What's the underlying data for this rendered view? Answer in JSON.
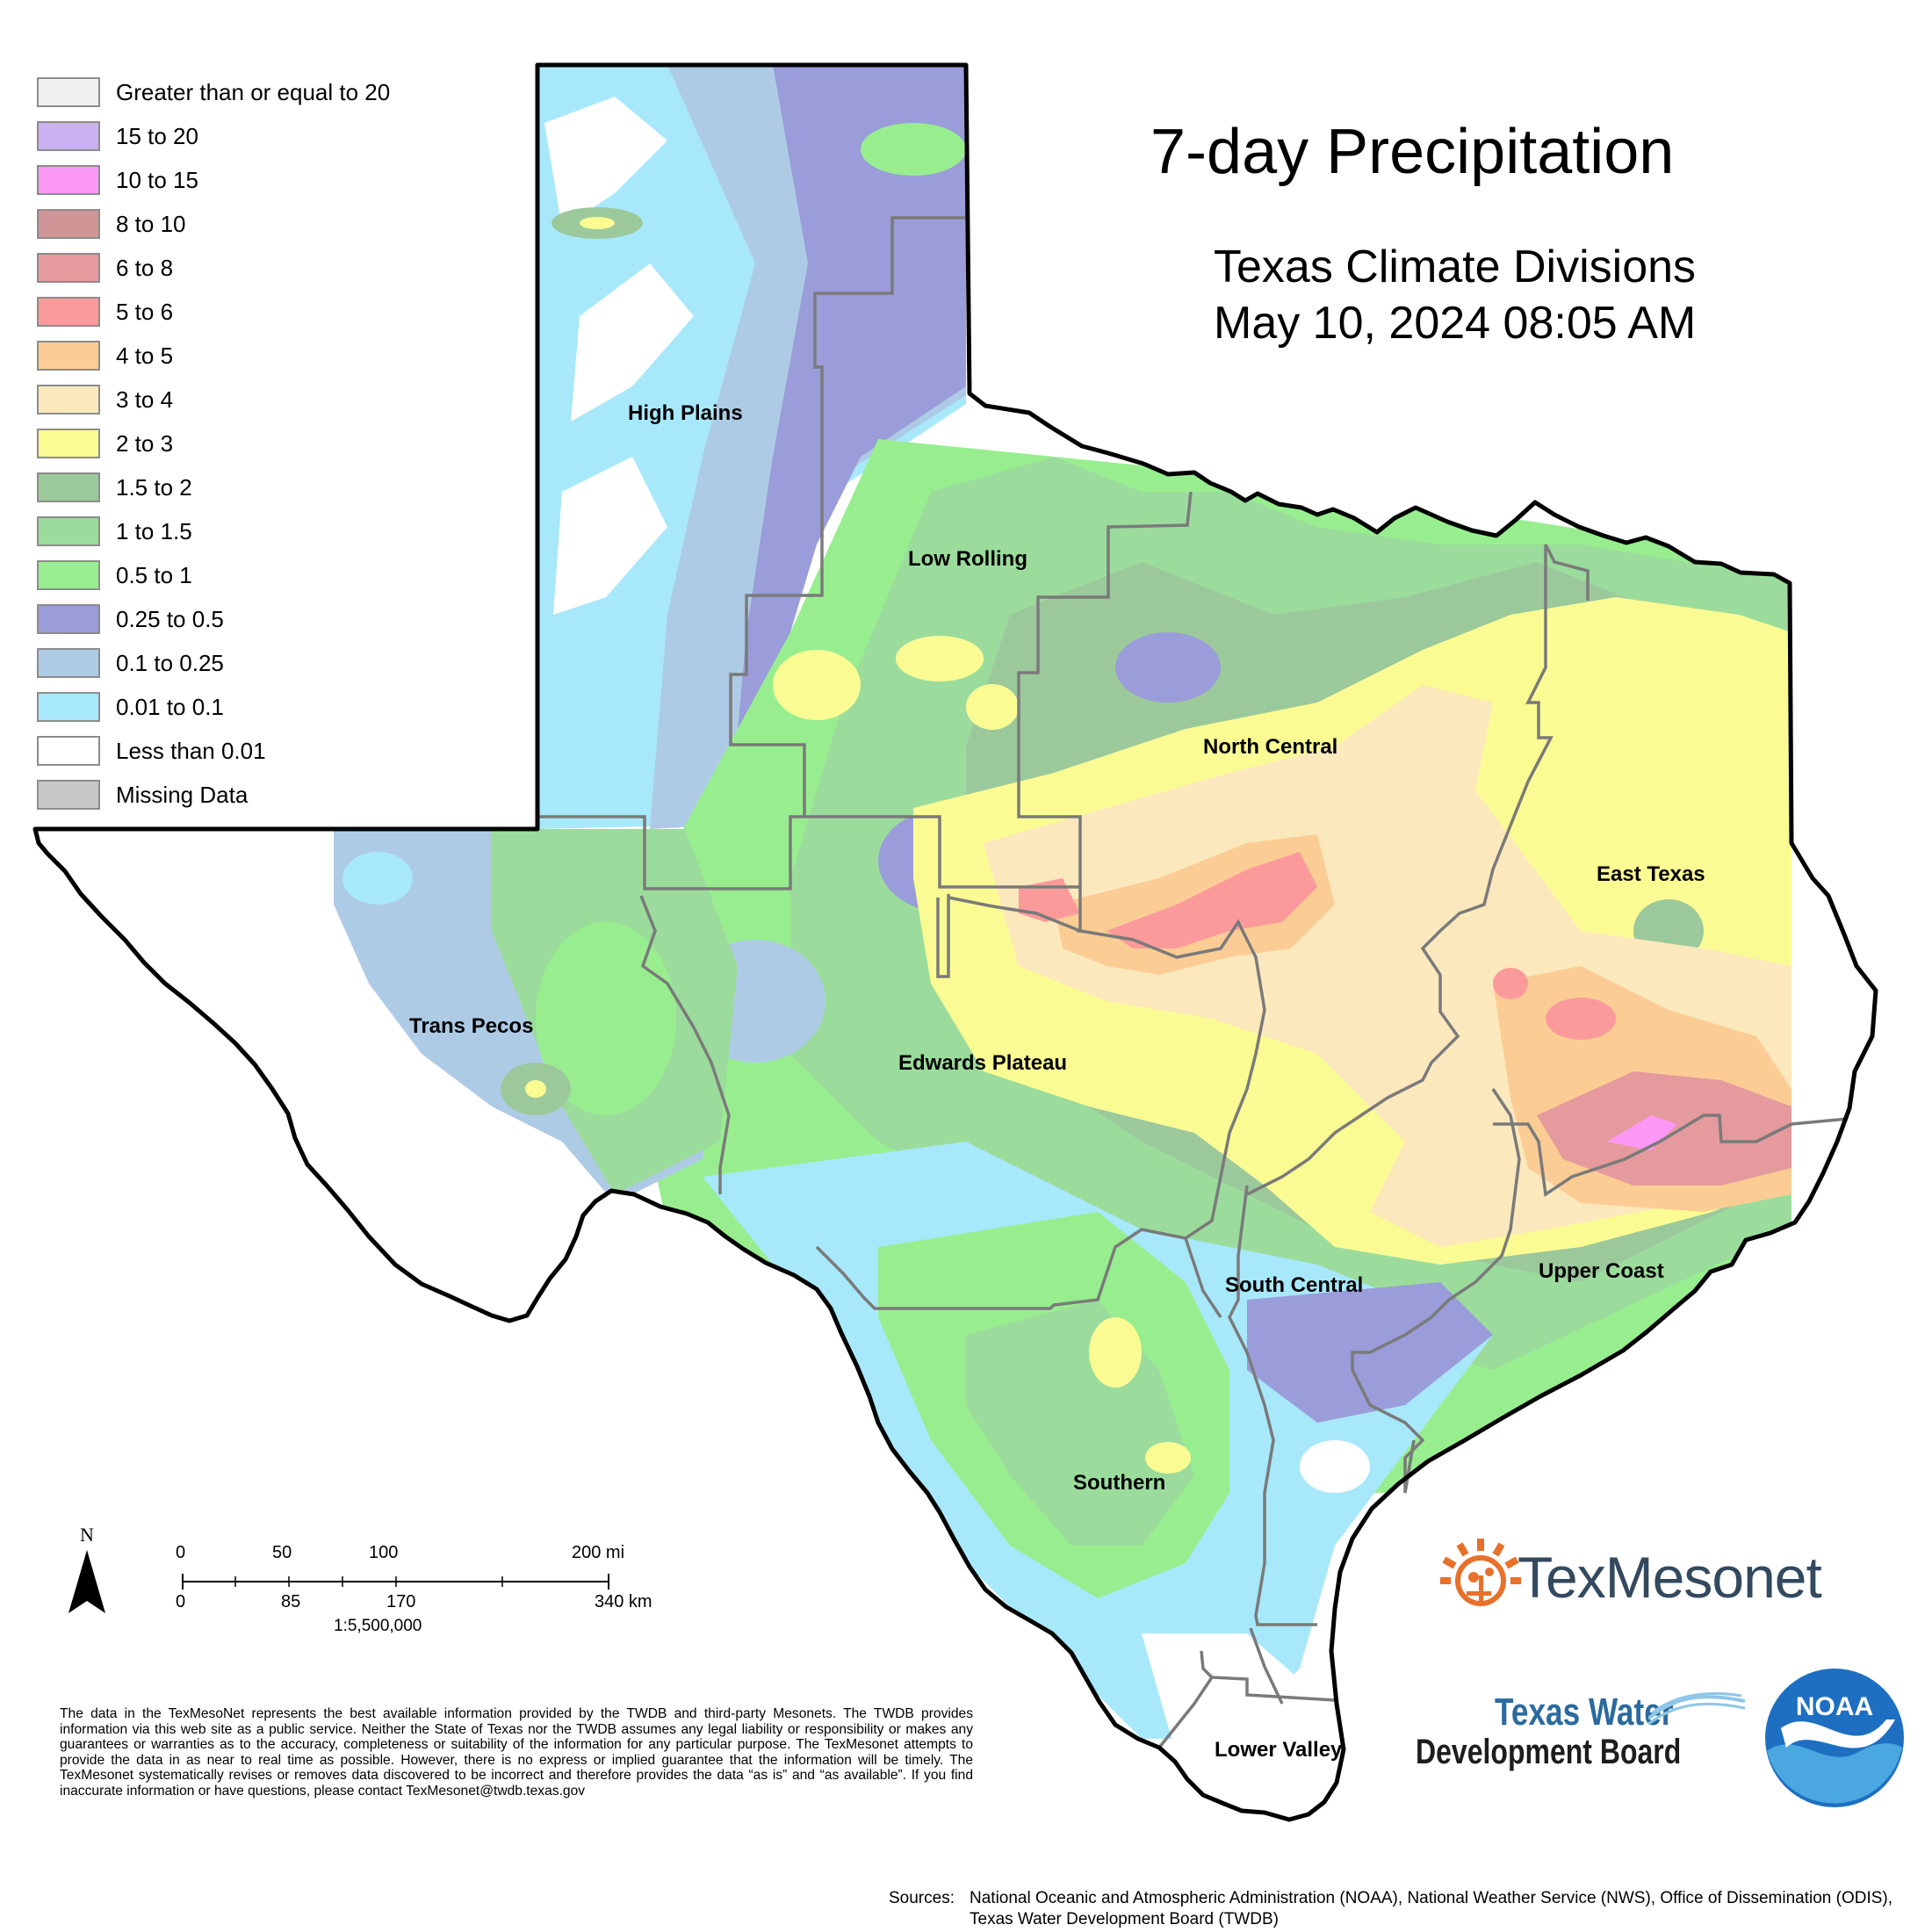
{
  "title": "7-day Precipitation",
  "subtitle": {
    "line1": "Texas Climate Divisions",
    "line2": "May 10, 2024 08:05 AM"
  },
  "legend": [
    {
      "label": "Greater than or equal to 20",
      "color": "#f0f0f0"
    },
    {
      "label": "15 to 20",
      "color": "#c9b1f2"
    },
    {
      "label": "10 to 15",
      "color": "#fb98f6"
    },
    {
      "label": "8 to 10",
      "color": "#cf9596"
    },
    {
      "label": "6 to 8",
      "color": "#e59a9d"
    },
    {
      "label": "5 to 6",
      "color": "#fb9a9b"
    },
    {
      "label": "4 to 5",
      "color": "#fbcd95"
    },
    {
      "label": "3 to 4",
      "color": "#fbe8bd"
    },
    {
      "label": "2 to 3",
      "color": "#fbfb94"
    },
    {
      "label": "1.5 to 2",
      "color": "#9cc99b"
    },
    {
      "label": "1 to 1.5",
      "color": "#9bdc9c"
    },
    {
      "label": "0.5 to 1",
      "color": "#98ee8f"
    },
    {
      "label": "0.25 to 0.5",
      "color": "#9a9dd9"
    },
    {
      "label": "0.1 to 0.25",
      "color": "#aecbe5"
    },
    {
      "label": "0.01 to 0.1",
      "color": "#a8e8fb"
    },
    {
      "label": "Less than 0.01",
      "color": "#ffffff"
    },
    {
      "label": "Missing Data",
      "color": "#c8c8c8"
    }
  ],
  "regions": {
    "high_plains": "High Plains",
    "low_rolling": "Low Rolling",
    "north_central": "North Central",
    "east_texas": "East Texas",
    "trans_pecos": "Trans Pecos",
    "edwards_plateau": "Edwards Plateau",
    "south_central": "South Central",
    "upper_coast": "Upper Coast",
    "southern": "Southern",
    "lower_valley": "Lower Valley"
  },
  "north_arrow": "N",
  "scale": {
    "miles": [
      "0",
      "50",
      "100",
      "200 mi"
    ],
    "km": [
      "0",
      "85",
      "170",
      "340 km"
    ],
    "ratio": "1:5,500,000"
  },
  "disclaimer": "The data in the TexMesoNet represents the best available information provided by the TWDB and third-party Mesonets. The TWDB provides information via this web site as a public service. Neither the State of Texas nor the TWDB assumes any legal liability or responsibility or makes any guarantees or warranties as to the accuracy, completeness or suitability of the information for any particular purpose. The TexMesonet attempts to provide the data in as near to real time as possible. However, there is no express or implied guarantee that the information will be timely. The TexMesonet systematically revises or removes data discovered to be incorrect and therefore provides the data “as is” and “as available”. If you find inaccurate information or have questions, please contact TexMesonet@twdb.texas.gov",
  "sources": {
    "label": "Sources:",
    "text": "National Oceanic and Atmospheric Administration (NOAA), National Weather Service (NWS), Office of Dissemination (ODIS), Texas Water Development Board (TWDB)"
  },
  "logos": {
    "texmesonet": "TexMesonet",
    "twdb_line1": "Texas Water",
    "twdb_line2": "Development Board",
    "noaa": "NOAA"
  },
  "colors": {
    "state_outline": "#000000",
    "division_lines": "#7a7a7a",
    "texmesonet_orange": "#e8702a",
    "noaa_blue": "#1e6fc2"
  }
}
